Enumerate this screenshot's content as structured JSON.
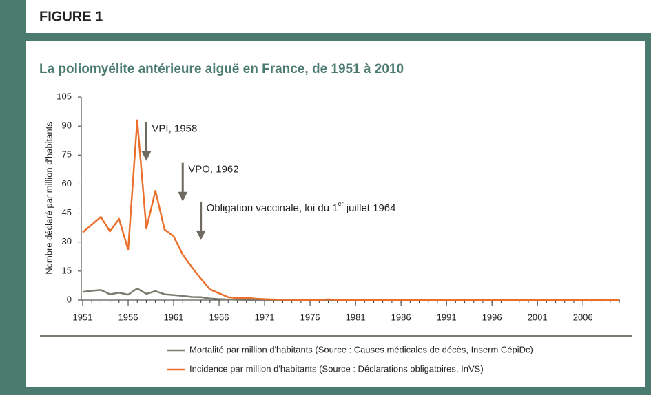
{
  "header": "FIGURE 1",
  "chart_data": {
    "type": "line",
    "title": "La poliomyélite antérieure aiguë en France, de 1951 à 2010",
    "y_label": "Nombre déclaré par million d'habitants",
    "x": [
      1951,
      1952,
      1953,
      1954,
      1955,
      1956,
      1957,
      1958,
      1959,
      1960,
      1961,
      1962,
      1963,
      1964,
      1965,
      1966,
      1967,
      1968,
      1969,
      1970,
      1971,
      1972,
      1973,
      1974,
      1975,
      1976,
      1977,
      1978,
      1979,
      1980,
      1981,
      1982,
      1983,
      1984,
      1985,
      1986,
      1987,
      1988,
      1989,
      1990,
      1991,
      1992,
      1993,
      1994,
      1995,
      1996,
      1997,
      1998,
      1999,
      2000,
      2001,
      2002,
      2003,
      2004,
      2005,
      2006,
      2007,
      2008,
      2009,
      2010
    ],
    "xlim": [
      1951,
      2010
    ],
    "xticks": [
      1951,
      1956,
      1961,
      1966,
      1971,
      1976,
      1981,
      1986,
      1991,
      1996,
      2001,
      2006
    ],
    "ylim": [
      0,
      105
    ],
    "yticks": [
      0,
      15,
      30,
      45,
      60,
      75,
      90,
      105
    ],
    "grid": false,
    "series": [
      {
        "name": "Mortalité par million d'habitants  (Source : Causes médicales de décès, Inserm CépiDc)",
        "color": "#7d7a70",
        "values": [
          4.2,
          4.8,
          5.2,
          3,
          3.8,
          2.8,
          6,
          3.2,
          4.6,
          3,
          2.6,
          2.2,
          1.6,
          1.5,
          0.8,
          0.5,
          0.3,
          0.2,
          0.1,
          0.1,
          0,
          0,
          0,
          0,
          0,
          0,
          0,
          0,
          0,
          0,
          0,
          0,
          0,
          0,
          0,
          0,
          0,
          0,
          0,
          0,
          0,
          0,
          0,
          0,
          0,
          0,
          0,
          0,
          0,
          0,
          0,
          0,
          0,
          0,
          0,
          0,
          0,
          0,
          0,
          0
        ]
      },
      {
        "name": "Incidence par million d'habitants (Source : Déclarations obligatoires, InVS)",
        "color": "#ea6f2b",
        "values": [
          35,
          39,
          43,
          35.5,
          42,
          26,
          93,
          37,
          56.5,
          36.5,
          33,
          23.5,
          17,
          11,
          5.5,
          3.5,
          1.5,
          1,
          1.2,
          0.7,
          0.5,
          0.3,
          0.2,
          0.2,
          0.1,
          0.1,
          0.1,
          0.4,
          0.1,
          0.1,
          0.1,
          0.1,
          0,
          0,
          0,
          0,
          0,
          0,
          0,
          0,
          0,
          0,
          0,
          0,
          0,
          0,
          0,
          0,
          0,
          0,
          0,
          0,
          0,
          0,
          0,
          0,
          0,
          0,
          0,
          0
        ]
      }
    ],
    "annotations": [
      {
        "text": "VPI, 1958",
        "x": 1958,
        "y": 72
      },
      {
        "text": "VPO, 1962",
        "x": 1962,
        "y": 51
      },
      {
        "text": "Obligation vaccinale, loi du 1",
        "sup": "er",
        "text_after": " juillet 1964",
        "x": 1964,
        "y": 31
      }
    ]
  }
}
